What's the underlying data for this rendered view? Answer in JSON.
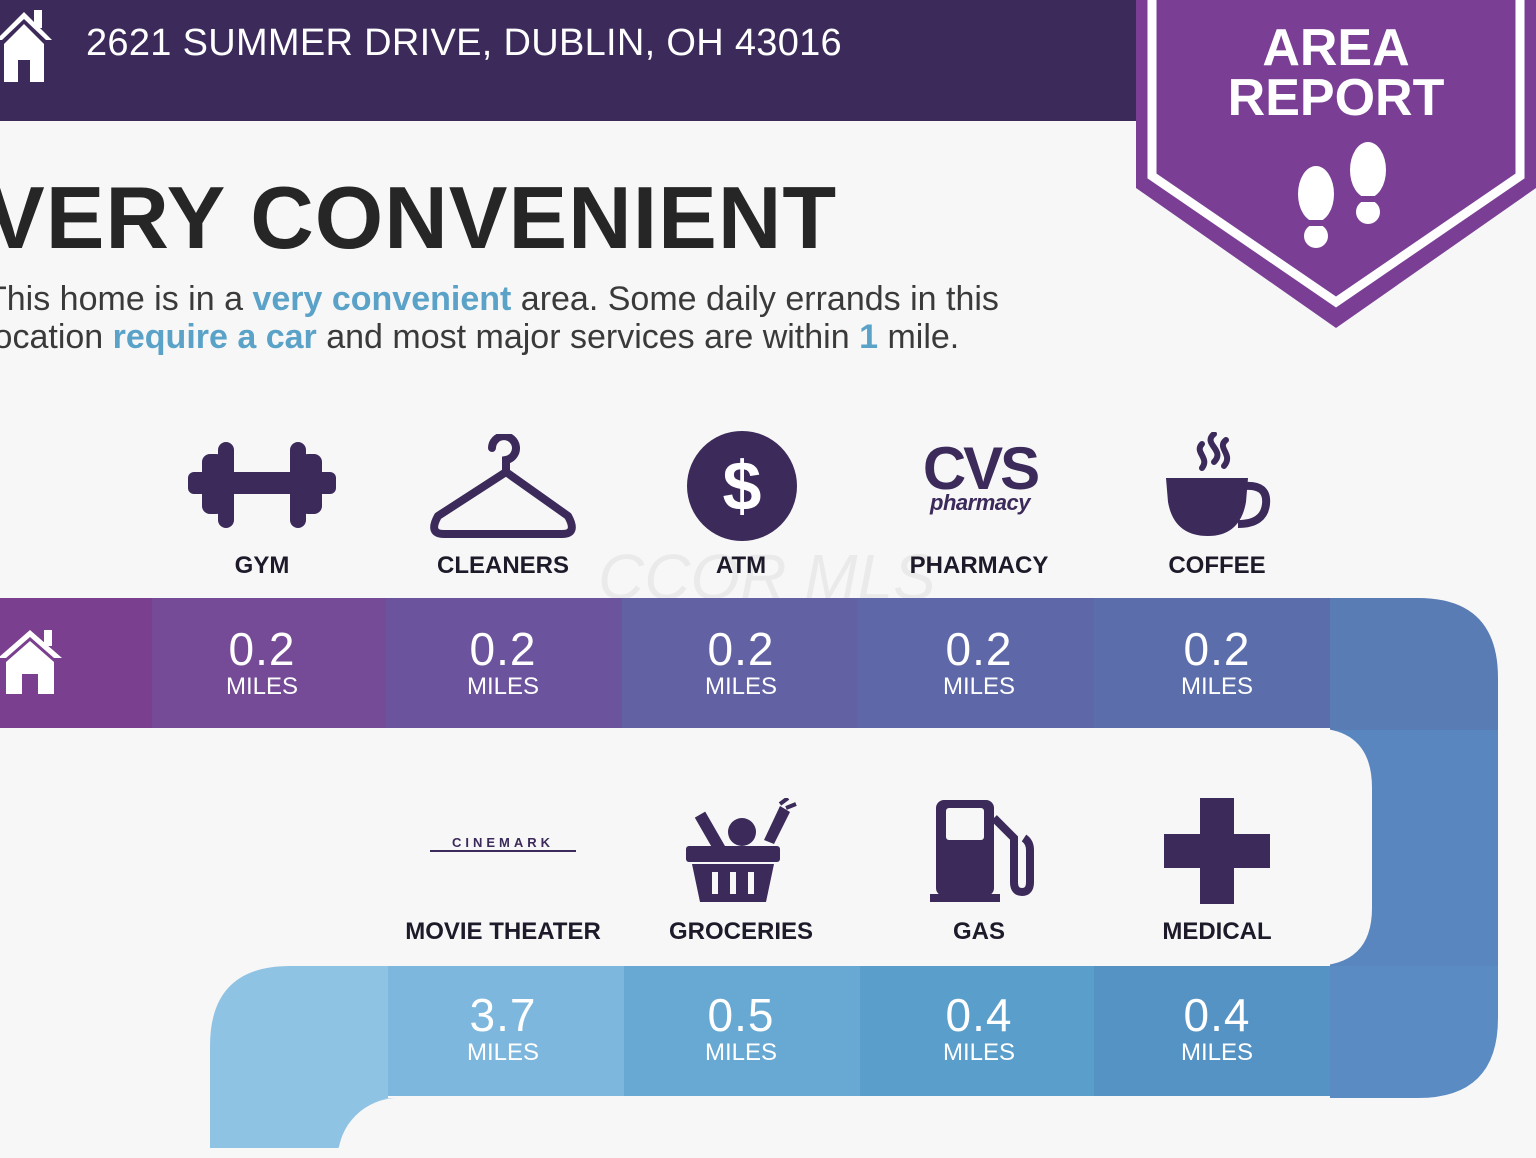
{
  "header": {
    "address": "2621 SUMMER DRIVE, DUBLIN, OH 43016",
    "icon": "home-icon",
    "color": "#3b2a5a"
  },
  "badge": {
    "line1": "AREA",
    "line2": "REPORT",
    "icon": "footprints-icon",
    "color": "#7a3f95"
  },
  "headline": "VERY CONVENIENT",
  "description": {
    "line1_pre": "This home is in a ",
    "line1_hl": "very convenient",
    "line1_post": " area. Some daily errands in this",
    "line2_pre": "location ",
    "line2_hl": "require a car",
    "line2_mid": " and most major services are within ",
    "line2_num": "1",
    "line2_post": " mile."
  },
  "watermark": "CCOR MLS",
  "row1": [
    {
      "label": "GYM",
      "icon": "dumbbell-icon",
      "distance": "0.2",
      "unit": "MILES"
    },
    {
      "label": "CLEANERS",
      "icon": "hanger-icon",
      "distance": "0.2",
      "unit": "MILES"
    },
    {
      "label": "ATM",
      "icon": "dollar-icon",
      "distance": "0.2",
      "unit": "MILES"
    },
    {
      "label": "PHARMACY",
      "icon": "cvs-logo",
      "logo_main": "CVS",
      "logo_sub": "pharmacy",
      "distance": "0.2",
      "unit": "MILES"
    },
    {
      "label": "COFFEE",
      "icon": "coffee-cup-icon",
      "distance": "0.2",
      "unit": "MILES"
    }
  ],
  "row2": [
    {
      "label": "MOVIE THEATER",
      "icon": "cinemark-logo",
      "logo_text": "CINEMARK",
      "distance": "3.7",
      "unit": "MILES"
    },
    {
      "label": "GROCERIES",
      "icon": "grocery-basket-icon",
      "distance": "0.5",
      "unit": "MILES"
    },
    {
      "label": "GAS",
      "icon": "gas-pump-icon",
      "distance": "0.4",
      "unit": "MILES"
    },
    {
      "label": "MEDICAL",
      "icon": "medical-cross-icon",
      "distance": "0.4",
      "unit": "MILES"
    }
  ],
  "colors": {
    "icon": "#3b2a5a",
    "accent": "#5aa2c8",
    "band1": [
      "#7a3f8e",
      "#754a96",
      "#6c539e",
      "#6261a4",
      "#5b6eab",
      "#5a7cb4"
    ],
    "band2": [
      "#8fc3e4",
      "#7db7dd",
      "#67a9d3",
      "#5a9ecb",
      "#5593c5",
      "#5a8bc2"
    ]
  }
}
